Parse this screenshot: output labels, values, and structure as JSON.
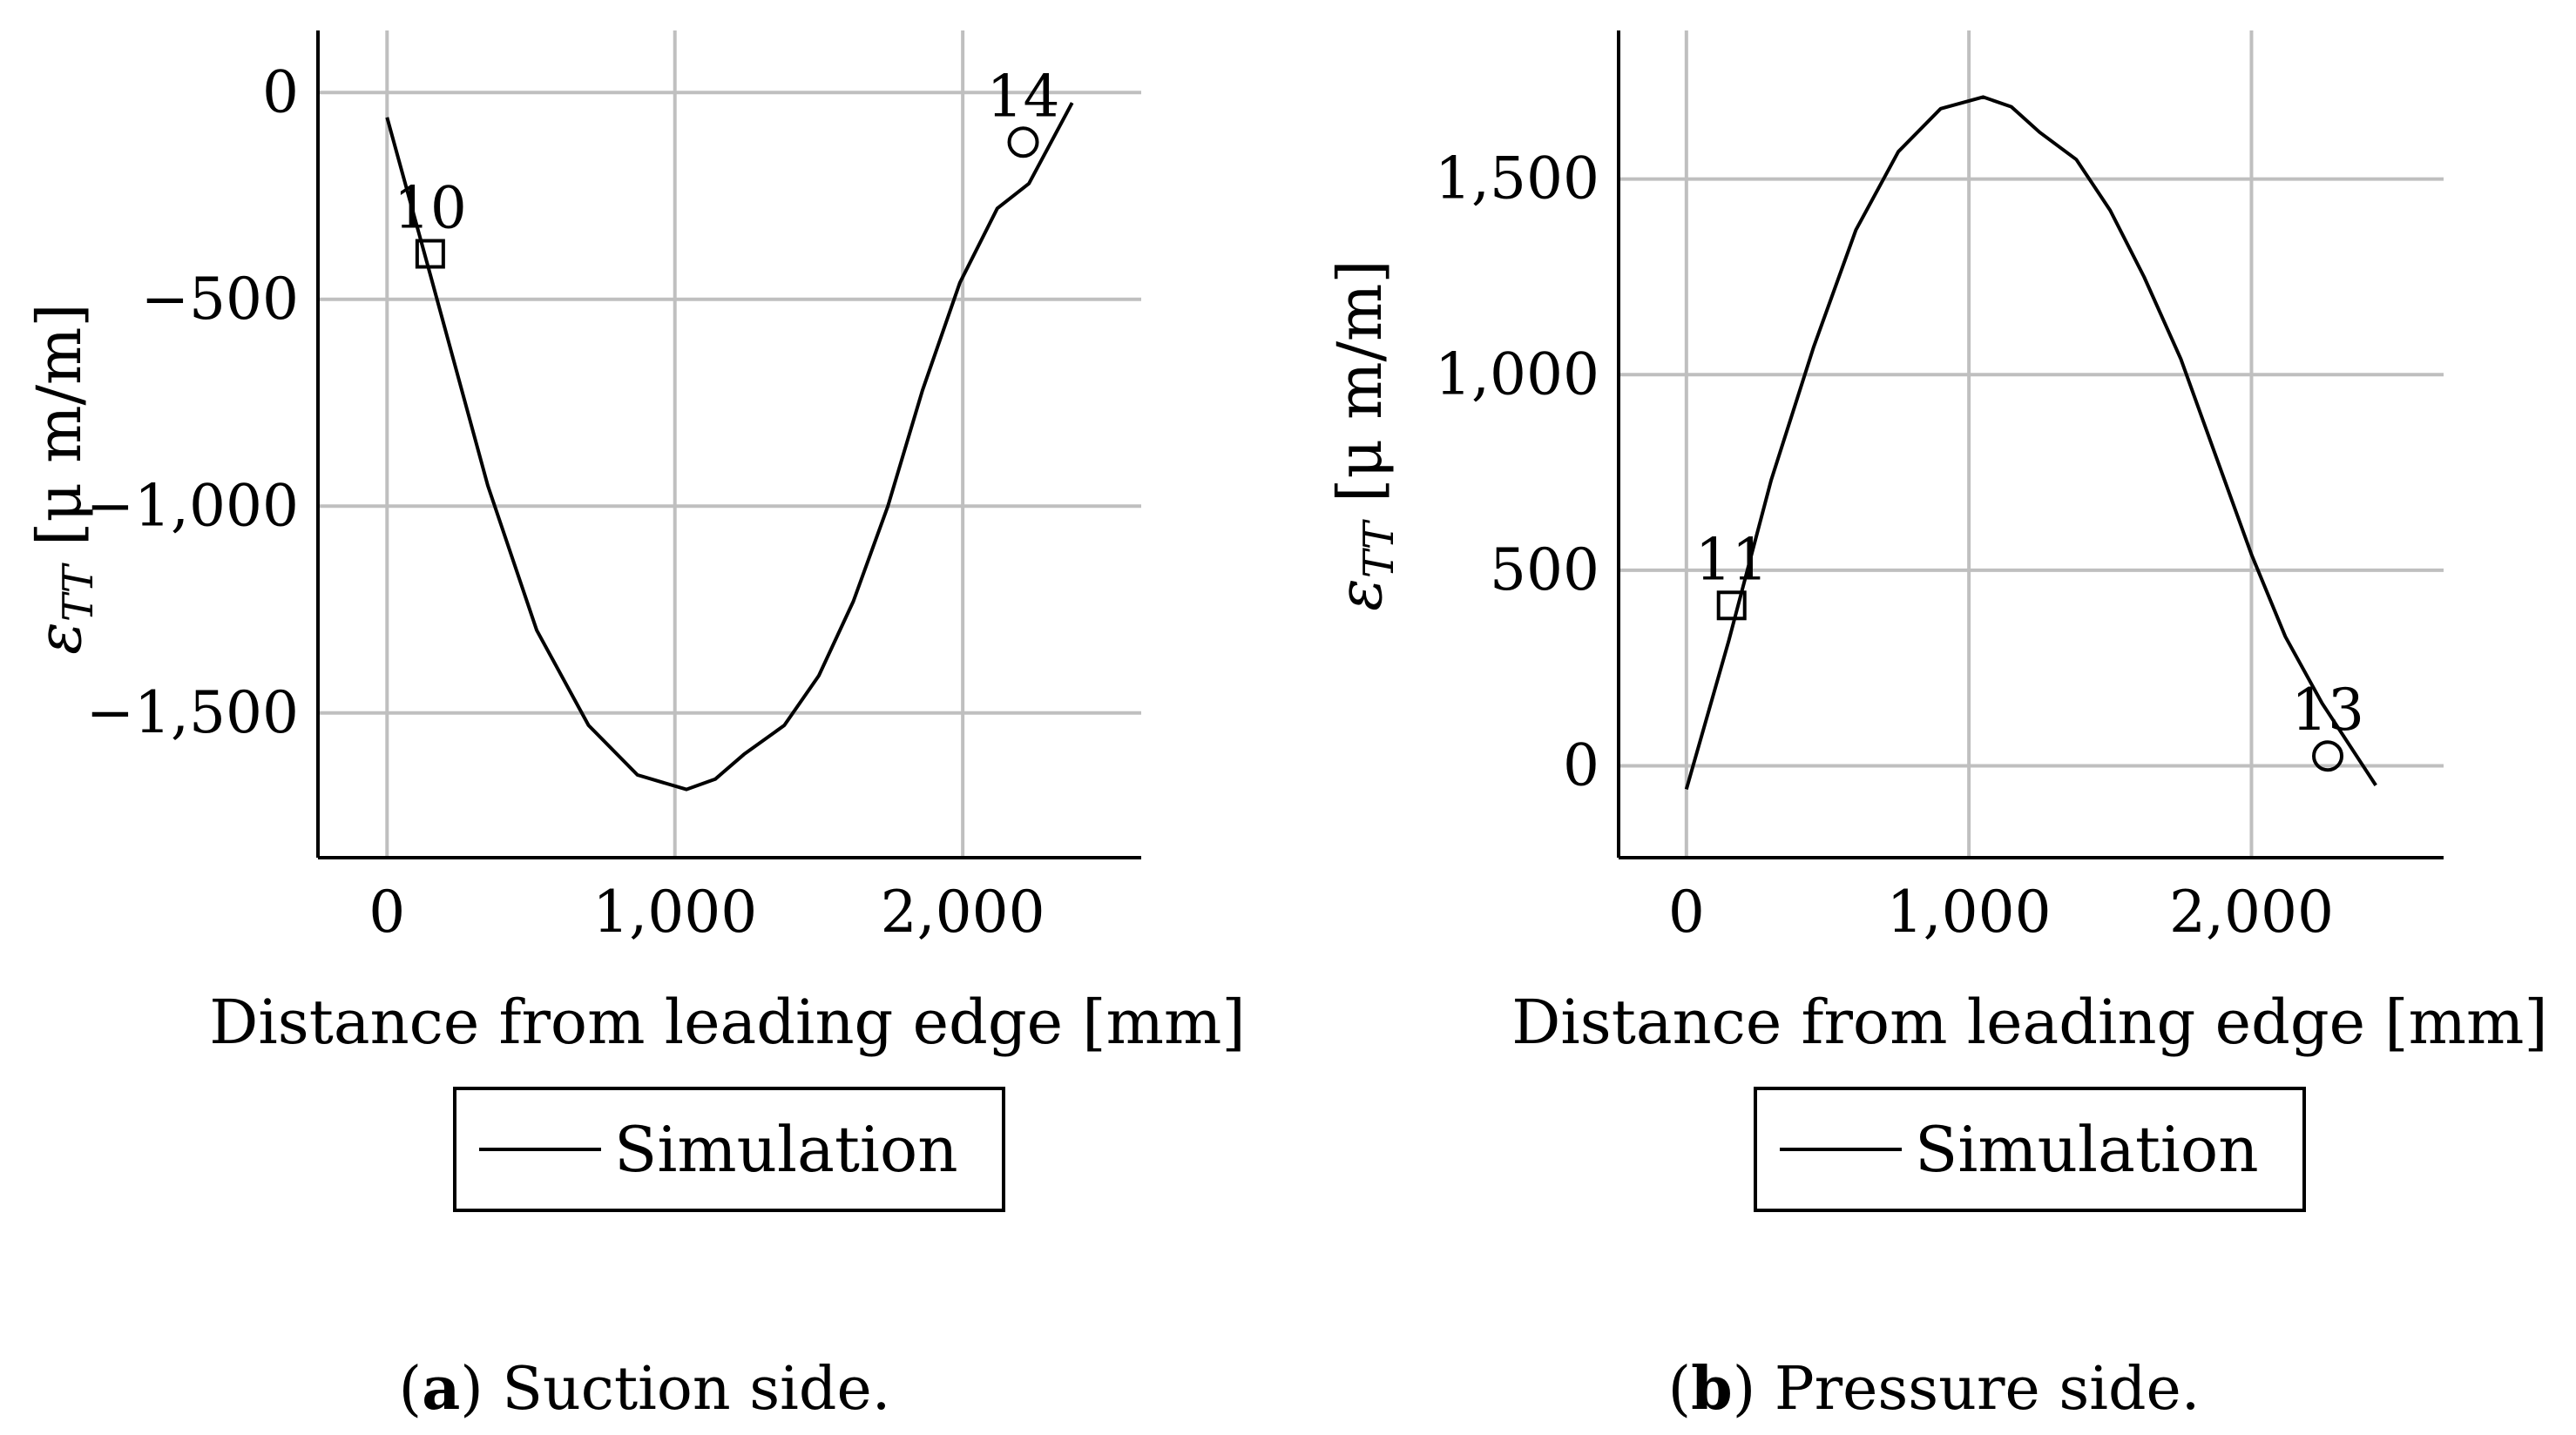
{
  "chart_data": [
    {
      "type": "line",
      "panel": "a",
      "caption_letter": "a",
      "caption_text": " Suction side.",
      "xlabel": "Distance from leading edge [mm]",
      "ylabel_main": "ε",
      "ylabel_sub": "TT",
      "ylabel_unit": " [μ m/m]",
      "xlim": [
        -240,
        2620
      ],
      "ylim": [
        -1850,
        150
      ],
      "xticks": [
        0,
        1000,
        2000
      ],
      "xtick_labels": [
        "0",
        "1,000",
        "2,000"
      ],
      "yticks": [
        0,
        -500,
        -1000,
        -1500
      ],
      "ytick_labels": [
        "0",
        "−500",
        "−1,000",
        "−1,500"
      ],
      "grid": true,
      "legend": [
        "Simulation"
      ],
      "series": [
        {
          "name": "Simulation",
          "x": [
            0,
            150,
            350,
            520,
            700,
            870,
            1040,
            1140,
            1240,
            1380,
            1500,
            1620,
            1740,
            1860,
            1990,
            2120,
            2230,
            2380
          ],
          "y": [
            -60,
            -440,
            -950,
            -1300,
            -1530,
            -1650,
            -1685,
            -1660,
            -1600,
            -1530,
            -1410,
            -1230,
            -1000,
            -720,
            -460,
            -280,
            -220,
            -25
          ]
        }
      ],
      "points": [
        {
          "label": "10",
          "marker": "square",
          "x": 150,
          "y": -390
        },
        {
          "label": "14",
          "marker": "circle",
          "x": 2210,
          "y": -120
        }
      ]
    },
    {
      "type": "line",
      "panel": "b",
      "caption_letter": "b",
      "caption_text": " Pressure side.",
      "xlabel": "Distance from leading edge [mm]",
      "ylabel_main": "ε",
      "ylabel_sub": "TT",
      "ylabel_unit": " [μ m/m]",
      "xlim": [
        -240,
        2680
      ],
      "ylim": [
        -235,
        1880
      ],
      "xticks": [
        0,
        1000,
        2000
      ],
      "xtick_labels": [
        "0",
        "1,000",
        "2,000"
      ],
      "yticks": [
        0,
        500,
        1000,
        1500
      ],
      "ytick_labels": [
        "0",
        "500",
        "1,000",
        "1,500"
      ],
      "grid": true,
      "legend": [
        "Simulation"
      ],
      "series": [
        {
          "name": "Simulation",
          "x": [
            0,
            150,
            300,
            450,
            600,
            750,
            900,
            1050,
            1150,
            1250,
            1380,
            1500,
            1620,
            1750,
            1880,
            2000,
            2120,
            2250,
            2440
          ],
          "y": [
            -60,
            320,
            730,
            1070,
            1370,
            1570,
            1680,
            1710,
            1685,
            1620,
            1550,
            1420,
            1250,
            1040,
            780,
            540,
            330,
            160,
            -50
          ]
        }
      ],
      "points": [
        {
          "label": "11",
          "marker": "square",
          "x": 160,
          "y": 410
        },
        {
          "label": "13",
          "marker": "circle",
          "x": 2270,
          "y": 25
        }
      ]
    }
  ]
}
